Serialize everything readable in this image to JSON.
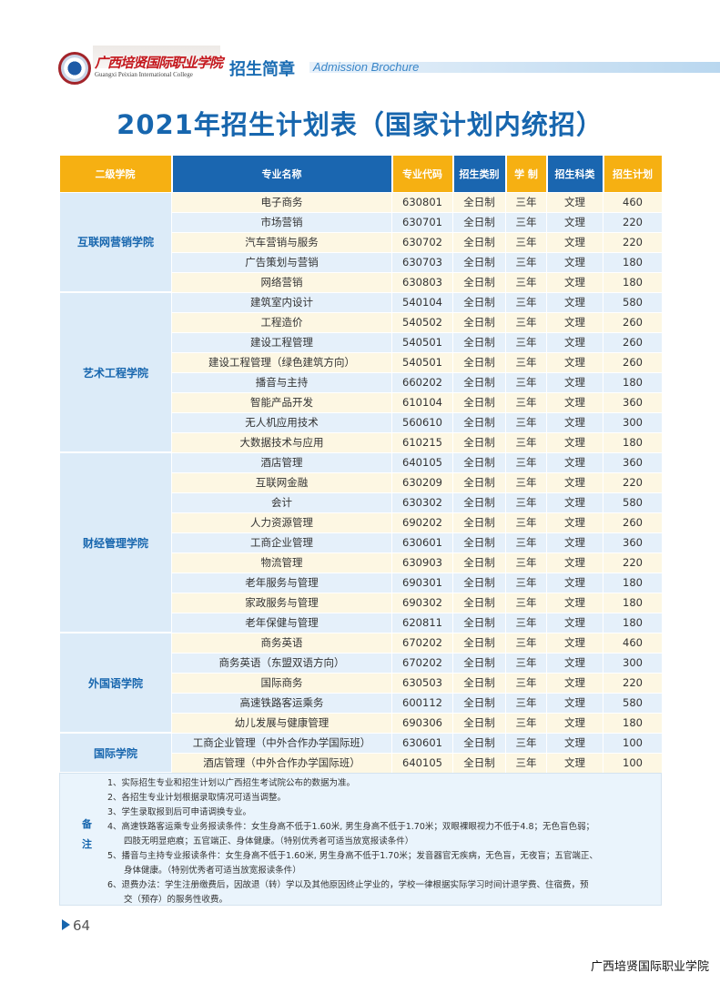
{
  "header": {
    "logo_cn": "广西培贤国际职业学院",
    "logo_en": "Guangxi Peixian International College",
    "section": "招生简章",
    "section_en": "Admission Brochure"
  },
  "title": "2021年招生计划表（国家计划内统招）",
  "colors": {
    "brand_blue": "#1766ae",
    "header_orange": "#f6b012",
    "header_blue": "#1a66b0"
  },
  "table": {
    "headers": [
      "二级学院",
      "专业名称",
      "专业代码",
      "招生类别",
      "学 制",
      "招生科类",
      "招生计划"
    ],
    "groups": [
      {
        "dept": "互联网营销学院",
        "rows": [
          [
            "电子商务",
            "630801",
            "全日制",
            "三年",
            "文理",
            "460"
          ],
          [
            "市场营销",
            "630701",
            "全日制",
            "三年",
            "文理",
            "220"
          ],
          [
            "汽车营销与服务",
            "630702",
            "全日制",
            "三年",
            "文理",
            "220"
          ],
          [
            "广告策划与营销",
            "630703",
            "全日制",
            "三年",
            "文理",
            "180"
          ],
          [
            "网络营销",
            "630803",
            "全日制",
            "三年",
            "文理",
            "180"
          ]
        ]
      },
      {
        "dept": "艺术工程学院",
        "rows": [
          [
            "建筑室内设计",
            "540104",
            "全日制",
            "三年",
            "文理",
            "580"
          ],
          [
            "工程造价",
            "540502",
            "全日制",
            "三年",
            "文理",
            "260"
          ],
          [
            "建设工程管理",
            "540501",
            "全日制",
            "三年",
            "文理",
            "260"
          ],
          [
            "建设工程管理（绿色建筑方向）",
            "540501",
            "全日制",
            "三年",
            "文理",
            "260"
          ],
          [
            "播音与主持",
            "660202",
            "全日制",
            "三年",
            "文理",
            "180"
          ],
          [
            "智能产品开发",
            "610104",
            "全日制",
            "三年",
            "文理",
            "360"
          ],
          [
            "无人机应用技术",
            "560610",
            "全日制",
            "三年",
            "文理",
            "300"
          ],
          [
            "大数据技术与应用",
            "610215",
            "全日制",
            "三年",
            "文理",
            "180"
          ]
        ]
      },
      {
        "dept": "财经管理学院",
        "rows": [
          [
            "酒店管理",
            "640105",
            "全日制",
            "三年",
            "文理",
            "360"
          ],
          [
            "互联网金融",
            "630209",
            "全日制",
            "三年",
            "文理",
            "220"
          ],
          [
            "会计",
            "630302",
            "全日制",
            "三年",
            "文理",
            "580"
          ],
          [
            "人力资源管理",
            "690202",
            "全日制",
            "三年",
            "文理",
            "260"
          ],
          [
            "工商企业管理",
            "630601",
            "全日制",
            "三年",
            "文理",
            "360"
          ],
          [
            "物流管理",
            "630903",
            "全日制",
            "三年",
            "文理",
            "220"
          ],
          [
            "老年服务与管理",
            "690301",
            "全日制",
            "三年",
            "文理",
            "180"
          ],
          [
            "家政服务与管理",
            "690302",
            "全日制",
            "三年",
            "文理",
            "180"
          ],
          [
            "老年保健与管理",
            "620811",
            "全日制",
            "三年",
            "文理",
            "180"
          ]
        ]
      },
      {
        "dept": "外国语学院",
        "rows": [
          [
            "商务英语",
            "670202",
            "全日制",
            "三年",
            "文理",
            "460"
          ],
          [
            "商务英语（东盟双语方向）",
            "670202",
            "全日制",
            "三年",
            "文理",
            "300"
          ],
          [
            "国际商务",
            "630503",
            "全日制",
            "三年",
            "文理",
            "220"
          ],
          [
            "高速铁路客运乘务",
            "600112",
            "全日制",
            "三年",
            "文理",
            "580"
          ],
          [
            "幼儿发展与健康管理",
            "690306",
            "全日制",
            "三年",
            "文理",
            "180"
          ]
        ]
      },
      {
        "dept": "国际学院",
        "rows": [
          [
            "工商企业管理（中外合作办学国际班）",
            "630601",
            "全日制",
            "三年",
            "文理",
            "100"
          ],
          [
            "酒店管理（中外合作办学国际班）",
            "640105",
            "全日制",
            "三年",
            "文理",
            "100"
          ]
        ]
      }
    ]
  },
  "notes": {
    "label": "备注",
    "items": [
      {
        "first": "1、实际招生专业和招生计划以广西招生考试院公布的数据为准。",
        "rest": ""
      },
      {
        "first": "2、各招生专业计划根据录取情况可适当调整。",
        "rest": ""
      },
      {
        "first": "3、学生录取报到后可申请调换专业。",
        "rest": ""
      },
      {
        "first": "4、高速铁路客运乘专业务报读条件：女生身高不低于1.60米, 男生身高不低于1.70米；双眼裸眼视力不低于4.8；无色盲色弱；",
        "rest": "四肢无明显疤痕；五官端正、身体健康。（特别优秀者可适当放宽报读条件）"
      },
      {
        "first": "5、播音与主持专业报读条件：女生身高不低于1.60米, 男生身高不低于1.70米；发音器官无疾病，无色盲，无夜盲；五官端正、",
        "rest": "身体健康。（特别优秀者可适当放宽报读条件）"
      },
      {
        "first": "6、退费办法：学生注册缴费后，因故退（转）学以及其他原因终止学业的，学校一律根据实际学习时间计退学费、住宿费，预",
        "rest": "交（预存）的服务性收费。"
      }
    ]
  },
  "page_number": "64",
  "footer": "广西培贤国际职业学院"
}
